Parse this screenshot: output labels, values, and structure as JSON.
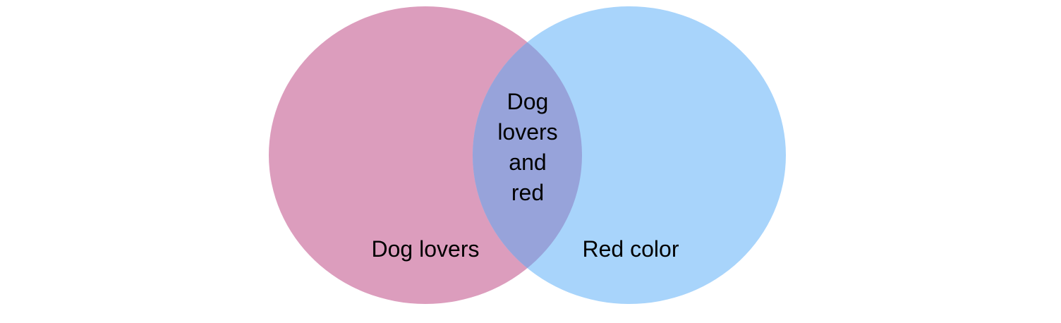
{
  "diagram": {
    "type": "venn",
    "sets": [
      {
        "id": "left",
        "label": "Dog lovers",
        "color": "#dc9dbd"
      },
      {
        "id": "right",
        "label": "Red color",
        "color": "#a8d4fb"
      }
    ],
    "intersection": {
      "label_lines": [
        "Dog",
        "lovers",
        "and",
        "red"
      ],
      "color": "#97a3da"
    }
  }
}
